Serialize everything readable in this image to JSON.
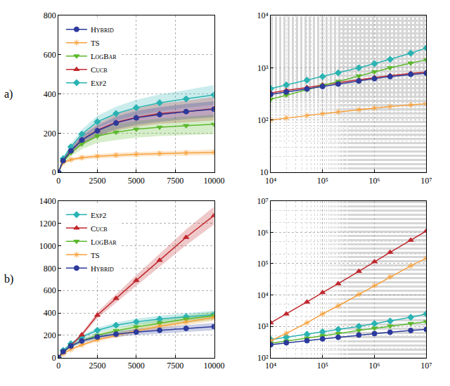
{
  "chart_data": [
    {
      "type": "line",
      "label": "a)",
      "legend": "upper left",
      "grid": true,
      "xlim": [
        0,
        10000
      ],
      "ylim": [
        0,
        800
      ],
      "xticks": [
        0,
        2500,
        5000,
        7500,
        10000
      ],
      "yticks": [
        0,
        200,
        400,
        600,
        800
      ],
      "x": [
        0,
        300,
        800,
        1500,
        2500,
        3700,
        5000,
        6500,
        8200,
        10000
      ],
      "series": [
        {
          "name": "Exp2",
          "color": "#2ab3b3",
          "marker": "diamond",
          "values": [
            0,
            70,
            130,
            195,
            258,
            300,
            330,
            355,
            375,
            395
          ],
          "lower": [
            0,
            62,
            115,
            172,
            228,
            265,
            290,
            312,
            330,
            345
          ],
          "upper": [
            0,
            78,
            145,
            218,
            288,
            335,
            370,
            398,
            420,
            445
          ]
        },
        {
          "name": "Cucb",
          "color": "#c0272d",
          "marker": "triangle-up",
          "values": [
            0,
            60,
            110,
            165,
            215,
            255,
            280,
            300,
            310,
            325
          ],
          "lower": [
            0,
            50,
            92,
            138,
            180,
            213,
            233,
            248,
            255,
            265
          ],
          "upper": [
            0,
            70,
            128,
            192,
            250,
            297,
            327,
            352,
            365,
            385
          ]
        },
        {
          "name": "LogBar",
          "color": "#5cb82c",
          "marker": "triangle-down",
          "values": [
            0,
            55,
            100,
            145,
            185,
            205,
            220,
            230,
            238,
            245
          ],
          "lower": [
            0,
            45,
            82,
            118,
            150,
            165,
            177,
            185,
            190,
            195
          ],
          "upper": [
            0,
            65,
            118,
            172,
            220,
            245,
            263,
            275,
            286,
            295
          ]
        },
        {
          "name": "TS",
          "color": "#f7a13b",
          "marker": "asterisk",
          "values": [
            0,
            50,
            65,
            75,
            82,
            88,
            92,
            96,
            99,
            102
          ],
          "lower": [
            0,
            43,
            56,
            65,
            71,
            76,
            80,
            83,
            86,
            88
          ],
          "upper": [
            0,
            57,
            74,
            85,
            93,
            100,
            104,
            109,
            112,
            116
          ]
        },
        {
          "name": "Hybrid",
          "color": "#2b3a9c",
          "marker": "circle-dot",
          "values": [
            0,
            60,
            110,
            165,
            212,
            252,
            278,
            295,
            310,
            322
          ],
          "lower": [
            0,
            52,
            96,
            144,
            185,
            220,
            243,
            258,
            271,
            281
          ],
          "upper": [
            0,
            68,
            124,
            186,
            239,
            284,
            313,
            332,
            349,
            363
          ]
        }
      ]
    },
    {
      "type": "line",
      "log": true,
      "grid": true,
      "xlim": [
        10000,
        10000000
      ],
      "ylim": [
        10,
        10000
      ],
      "xticks": [
        {
          "value": 10000,
          "label": "10⁴"
        },
        {
          "value": 100000,
          "label": "10⁵"
        },
        {
          "value": 1000000,
          "label": "10⁶"
        },
        {
          "value": 10000000,
          "label": "10⁷"
        }
      ],
      "yticks": [
        10,
        {
          "value": 100,
          "label": "10²"
        },
        {
          "value": 1000,
          "label": "10³"
        },
        {
          "value": 10000,
          "label": "10⁴"
        }
      ],
      "x": [
        10000,
        20000,
        50000,
        100000,
        200000,
        500000,
        1000000,
        2000000,
        5000000,
        10000000
      ],
      "series": [
        {
          "name": "Exp2",
          "color": "#2ab3b3",
          "marker": "diamond",
          "values": [
            400,
            470,
            580,
            680,
            800,
            1000,
            1200,
            1450,
            1900,
            2400
          ]
        },
        {
          "name": "Cucb",
          "color": "#c0272d",
          "marker": "triangle-up",
          "values": [
            330,
            370,
            420,
            470,
            520,
            590,
            650,
            710,
            780,
            830
          ]
        },
        {
          "name": "LogBar",
          "color": "#5cb82c",
          "marker": "triangle-down",
          "values": [
            250,
            300,
            380,
            460,
            550,
            700,
            840,
            1000,
            1230,
            1420
          ]
        },
        {
          "name": "TS",
          "color": "#f7a13b",
          "marker": "asterisk",
          "values": [
            100,
            110,
            122,
            132,
            143,
            158,
            170,
            182,
            195,
            205
          ]
        },
        {
          "name": "Hybrid",
          "color": "#2b3a9c",
          "marker": "circle-dot",
          "values": [
            310,
            345,
            395,
            440,
            490,
            560,
            620,
            680,
            750,
            790
          ]
        }
      ]
    },
    {
      "type": "line",
      "label": "b)",
      "legend": "upper left",
      "grid": true,
      "xlim": [
        0,
        10000
      ],
      "ylim": [
        0,
        1400
      ],
      "xticks": [
        0,
        2500,
        5000,
        7500,
        10000
      ],
      "yticks": [
        0,
        200,
        400,
        600,
        800,
        1000,
        1200,
        1400
      ],
      "x": [
        0,
        300,
        800,
        1500,
        2500,
        3700,
        5000,
        6500,
        8200,
        10000
      ],
      "series": [
        {
          "name": "Exp2",
          "color": "#2ab3b3",
          "marker": "diamond",
          "values": [
            0,
            65,
            125,
            185,
            245,
            290,
            320,
            345,
            365,
            385
          ],
          "lower": [
            0,
            58,
            113,
            168,
            223,
            265,
            292,
            315,
            333,
            350
          ],
          "upper": [
            0,
            72,
            137,
            202,
            267,
            315,
            348,
            375,
            397,
            420
          ]
        },
        {
          "name": "Cucb",
          "color": "#c0272d",
          "marker": "triangle-up",
          "values": [
            0,
            45,
            110,
            205,
            380,
            530,
            690,
            870,
            1075,
            1270
          ],
          "lower": [
            0,
            40,
            100,
            188,
            352,
            492,
            642,
            812,
            1005,
            1190
          ],
          "upper": [
            0,
            50,
            120,
            222,
            408,
            568,
            738,
            928,
            1145,
            1350
          ]
        },
        {
          "name": "LogBar",
          "color": "#5cb82c",
          "marker": "triangle-down",
          "values": [
            0,
            55,
            105,
            150,
            200,
            240,
            275,
            310,
            345,
            375
          ],
          "lower": [
            0,
            48,
            93,
            133,
            178,
            214,
            246,
            278,
            310,
            338
          ],
          "upper": [
            0,
            62,
            117,
            167,
            222,
            266,
            304,
            342,
            380,
            412
          ]
        },
        {
          "name": "TS",
          "color": "#f7a13b",
          "marker": "asterisk",
          "values": [
            0,
            35,
            75,
            115,
            160,
            200,
            240,
            280,
            320,
            360
          ],
          "lower": [
            0,
            31,
            67,
            103,
            144,
            181,
            218,
            255,
            292,
            330
          ],
          "upper": [
            0,
            39,
            83,
            127,
            176,
            219,
            262,
            305,
            348,
            390
          ]
        },
        {
          "name": "Hybrid",
          "color": "#2b3a9c",
          "marker": "circle-dot",
          "values": [
            0,
            55,
            105,
            150,
            185,
            210,
            230,
            245,
            262,
            278
          ],
          "lower": [
            0,
            48,
            92,
            132,
            163,
            185,
            203,
            216,
            231,
            245
          ],
          "upper": [
            0,
            62,
            118,
            168,
            207,
            235,
            257,
            274,
            293,
            311
          ]
        }
      ]
    },
    {
      "type": "line",
      "log": true,
      "grid": true,
      "xlim": [
        10000,
        10000000
      ],
      "ylim": [
        100,
        10000000
      ],
      "xticks": [
        {
          "value": 10000,
          "label": "10⁴"
        },
        {
          "value": 100000,
          "label": "10⁵"
        },
        {
          "value": 1000000,
          "label": "10⁶"
        },
        {
          "value": 10000000,
          "label": "10⁷"
        }
      ],
      "yticks": [
        {
          "value": 100,
          "label": "10²"
        },
        {
          "value": 1000,
          "label": "10³"
        },
        {
          "value": 10000,
          "label": "10⁴"
        },
        {
          "value": 100000,
          "label": "10⁵"
        },
        {
          "value": 1000000,
          "label": "10⁶"
        },
        {
          "value": 10000000,
          "label": "10⁷"
        }
      ],
      "x": [
        10000,
        20000,
        50000,
        100000,
        200000,
        500000,
        1000000,
        2000000,
        5000000,
        10000000
      ],
      "series": [
        {
          "name": "Exp2",
          "color": "#2ab3b3",
          "marker": "diamond",
          "values": [
            380,
            450,
            560,
            670,
            800,
            1000,
            1220,
            1480,
            1950,
            2500
          ]
        },
        {
          "name": "Cucb",
          "color": "#c0272d",
          "marker": "triangle-up",
          "values": [
            1300,
            2500,
            6000,
            12000,
            23000,
            57000,
            115000,
            230000,
            560000,
            1100000
          ]
        },
        {
          "name": "LogBar",
          "color": "#5cb82c",
          "marker": "triangle-down",
          "values": [
            290,
            340,
            420,
            500,
            590,
            740,
            870,
            1020,
            1230,
            1400
          ]
        },
        {
          "name": "TS",
          "color": "#f7a13b",
          "marker": "asterisk",
          "values": [
            350,
            600,
            1300,
            2500,
            4500,
            10500,
            20000,
            38000,
            85000,
            150000
          ]
        },
        {
          "name": "Hybrid",
          "color": "#2b3a9c",
          "marker": "circle-dot",
          "values": [
            260,
            300,
            350,
            400,
            450,
            530,
            590,
            650,
            740,
            800
          ]
        }
      ]
    }
  ]
}
